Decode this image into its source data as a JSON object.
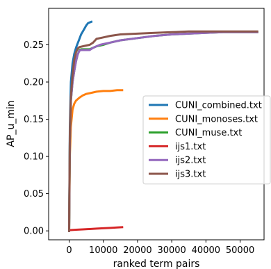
{
  "chart_data": {
    "type": "line",
    "xlabel": "ranked term pairs",
    "ylabel": "AP_u_min",
    "xlim": [
      -6000,
      57000
    ],
    "ylim": [
      -0.012,
      0.299
    ],
    "xticks": [
      0,
      10000,
      20000,
      30000,
      40000,
      50000
    ],
    "xtick_labels": [
      "0",
      "10000",
      "20000",
      "30000",
      "40000",
      "50000"
    ],
    "yticks": [
      0.0,
      0.05,
      0.1,
      0.15,
      0.2,
      0.25
    ],
    "ytick_labels": [
      "0.00",
      "0.05",
      "0.10",
      "0.15",
      "0.20",
      "0.25"
    ],
    "grid": false,
    "legend_position": "center-right",
    "series": [
      {
        "name": "CUNI_combined.txt",
        "color": "#1f77b4",
        "x": [
          0,
          200,
          500,
          1000,
          1500,
          2000,
          2500,
          3000,
          3500,
          4000,
          4500,
          5000,
          5500,
          6000,
          6500
        ],
        "y": [
          0.0,
          0.14,
          0.2,
          0.225,
          0.238,
          0.246,
          0.252,
          0.258,
          0.264,
          0.268,
          0.272,
          0.276,
          0.279,
          0.28,
          0.281
        ]
      },
      {
        "name": "CUNI_monoses.txt",
        "color": "#ff7f0e",
        "x": [
          0,
          200,
          500,
          1000,
          1500,
          2000,
          3000,
          4000,
          5000,
          6000,
          8000,
          10000,
          12000,
          14000,
          15500
        ],
        "y": [
          0.0,
          0.1,
          0.14,
          0.163,
          0.171,
          0.175,
          0.179,
          0.182,
          0.184,
          0.185,
          0.187,
          0.188,
          0.188,
          0.189,
          0.189
        ]
      },
      {
        "name": "CUNI_muse.txt",
        "color": "#2ca02c",
        "x": [
          0,
          200,
          500,
          1000,
          1500,
          2000,
          2500,
          3000,
          3500,
          4000,
          5000,
          6000,
          7000,
          8000,
          9000,
          10000,
          12000,
          15000,
          20000,
          25000,
          30000,
          35000,
          40000,
          45000,
          50000,
          55000
        ],
        "y": [
          0.0,
          0.12,
          0.175,
          0.2,
          0.215,
          0.228,
          0.237,
          0.243,
          0.244,
          0.244,
          0.244,
          0.244,
          0.246,
          0.248,
          0.249,
          0.25,
          0.253,
          0.256,
          0.259,
          0.262,
          0.264,
          0.265,
          0.266,
          0.267,
          0.267,
          0.267
        ]
      },
      {
        "name": "ijs1.txt",
        "color": "#d62728",
        "x": [
          0,
          2000,
          4000,
          6000,
          8000,
          10000,
          12000,
          14000,
          15500
        ],
        "y": [
          0.001,
          0.0015,
          0.002,
          0.0025,
          0.003,
          0.0035,
          0.004,
          0.0045,
          0.005
        ]
      },
      {
        "name": "ijs2.txt",
        "color": "#9467bd",
        "x": [
          0,
          200,
          500,
          1000,
          1500,
          2000,
          2500,
          3000,
          3500,
          4000,
          5000,
          6000,
          7000,
          8000,
          9000,
          10000,
          12000,
          15000,
          20000,
          25000,
          30000,
          35000,
          40000,
          45000,
          50000,
          55000
        ],
        "y": [
          0.0,
          0.12,
          0.175,
          0.2,
          0.215,
          0.228,
          0.237,
          0.242,
          0.243,
          0.243,
          0.243,
          0.243,
          0.246,
          0.248,
          0.25,
          0.251,
          0.253,
          0.256,
          0.259,
          0.262,
          0.264,
          0.265,
          0.266,
          0.267,
          0.267,
          0.267
        ]
      },
      {
        "name": "ijs3.txt",
        "color": "#8c564b",
        "x": [
          0,
          200,
          500,
          1000,
          1500,
          2000,
          2500,
          3000,
          4000,
          5000,
          6000,
          7000,
          8000,
          10000,
          12000,
          15000,
          20000,
          25000,
          30000,
          35000,
          40000,
          45000,
          50000,
          55000
        ],
        "y": [
          0.0,
          0.13,
          0.18,
          0.21,
          0.23,
          0.24,
          0.245,
          0.247,
          0.248,
          0.249,
          0.25,
          0.253,
          0.258,
          0.26,
          0.262,
          0.264,
          0.265,
          0.266,
          0.267,
          0.268,
          0.268,
          0.268,
          0.268,
          0.268
        ]
      }
    ]
  }
}
